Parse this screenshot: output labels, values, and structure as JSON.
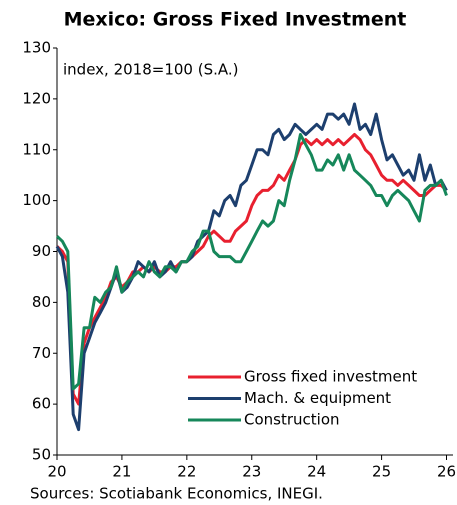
{
  "chart_data": {
    "type": "line",
    "title": "Mexico: Gross Fixed Investment",
    "annotation": "index, 2018=100 (S.A.)",
    "source": "Sources: Scotiabank Economics, INEGI.",
    "xlim": [
      20,
      26.1
    ],
    "xticks": [
      20,
      21,
      22,
      23,
      24,
      25,
      26
    ],
    "ylim": [
      50,
      130
    ],
    "yticks": [
      50,
      60,
      70,
      80,
      90,
      100,
      110,
      120,
      130
    ],
    "grid": false,
    "legend": "lower right",
    "x": [
      20,
      20.083,
      20.167,
      20.25,
      20.333,
      20.417,
      20.5,
      20.583,
      20.667,
      20.75,
      20.833,
      20.917,
      21,
      21.083,
      21.167,
      21.25,
      21.333,
      21.417,
      21.5,
      21.583,
      21.667,
      21.75,
      21.833,
      21.917,
      22,
      22.083,
      22.167,
      22.25,
      22.333,
      22.417,
      22.5,
      22.583,
      22.667,
      22.75,
      22.833,
      22.917,
      23,
      23.083,
      23.167,
      23.25,
      23.333,
      23.417,
      23.5,
      23.583,
      23.667,
      23.75,
      23.833,
      23.917,
      24,
      24.083,
      24.167,
      24.25,
      24.333,
      24.417,
      24.5,
      24.583,
      24.667,
      24.75,
      24.833,
      24.917,
      25,
      25.083,
      25.167,
      25.25,
      25.333,
      25.417,
      25.5,
      25.583,
      25.667,
      25.75,
      25.833,
      25.917,
      26
    ],
    "series": [
      {
        "name": "Gross fixed investment",
        "color": "#e8202f",
        "values": [
          91,
          90,
          88,
          62,
          60,
          72,
          75,
          77,
          79,
          81,
          84,
          85,
          83,
          84,
          86,
          86,
          87,
          86,
          87,
          86,
          86,
          87,
          87,
          88,
          88,
          89,
          90,
          91,
          93,
          94,
          93,
          92,
          92,
          94,
          95,
          96,
          99,
          101,
          102,
          102,
          103,
          105,
          104,
          106,
          108,
          111,
          112,
          111,
          112,
          111,
          112,
          111,
          112,
          111,
          112,
          113,
          112,
          110,
          109,
          107,
          105,
          104,
          104,
          103,
          104,
          103,
          102,
          101,
          101,
          102,
          103,
          103,
          102
        ]
      },
      {
        "name": "Mach. & equipment",
        "color": "#1d3f6e",
        "values": [
          91,
          89,
          82,
          58,
          55,
          70,
          73,
          76,
          78,
          80,
          83,
          86,
          82,
          83,
          85,
          88,
          87,
          86,
          88,
          85,
          86,
          88,
          86,
          88,
          88,
          89,
          92,
          93,
          94,
          98,
          97,
          100,
          101,
          99,
          103,
          104,
          107,
          110,
          110,
          109,
          113,
          114,
          112,
          113,
          115,
          114,
          113,
          114,
          115,
          114,
          117,
          117,
          116,
          117,
          115,
          119,
          114,
          115,
          113,
          117,
          112,
          108,
          109,
          107,
          105,
          106,
          104,
          109,
          104,
          107,
          103,
          104,
          102
        ]
      },
      {
        "name": "Construction",
        "color": "#16875a",
        "values": [
          93,
          92,
          90,
          63,
          64,
          75,
          75,
          81,
          80,
          82,
          83,
          87,
          82,
          84,
          85,
          86,
          85,
          88,
          86,
          85,
          87,
          87,
          86,
          88,
          88,
          90,
          91,
          94,
          94,
          90,
          89,
          89,
          89,
          88,
          88,
          90,
          92,
          94,
          96,
          95,
          96,
          100,
          99,
          104,
          108,
          113,
          111,
          109,
          106,
          106,
          108,
          107,
          109,
          106,
          109,
          106,
          105,
          104,
          103,
          101,
          101,
          99,
          101,
          102,
          101,
          100,
          98,
          96,
          102,
          103,
          103,
          104,
          101
        ]
      }
    ]
  }
}
